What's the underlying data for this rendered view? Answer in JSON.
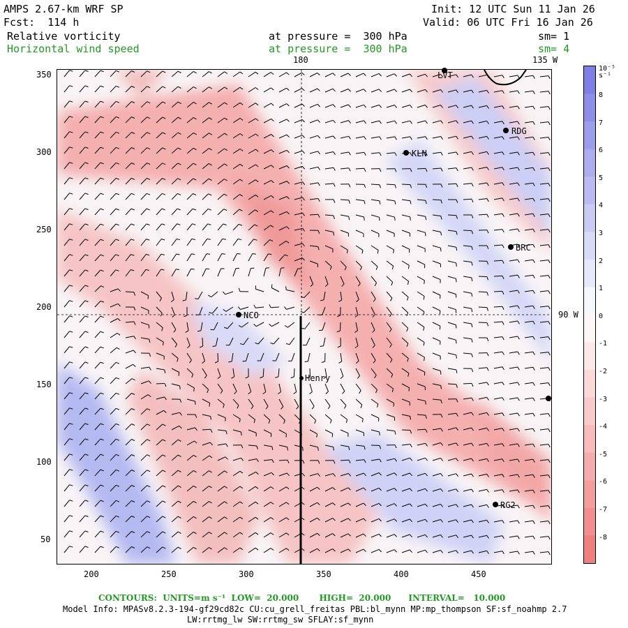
{
  "header": {
    "model": "AMPS 2.67-km WRF SP",
    "fcst": "Fcst:  114 h",
    "init": "Init: 12 UTC Sun 11 Jan 26",
    "valid": "Valid: 06 UTC Fri 16 Jan 26",
    "field1": {
      "name": "Relative vorticity",
      "level": "at pressure =  300 hPa",
      "sm": "sm= 1"
    },
    "field2": {
      "name": "Horizontal wind speed",
      "level": "at pressure =  300 hPa",
      "sm": "sm= 4"
    }
  },
  "map": {
    "x_ticks": [
      "200",
      "250",
      "300",
      "350",
      "400",
      "450"
    ],
    "y_ticks": [
      "50",
      "100",
      "150",
      "200",
      "250",
      "300",
      "350"
    ],
    "meridian_labels": [
      "180",
      "135 W",
      "90 W"
    ],
    "stations": [
      "LVT",
      "RDG",
      "KLN",
      "BRC",
      "NCO",
      "Henry",
      "RG2"
    ]
  },
  "colorbar": {
    "unit": "10⁻⁵ s⁻¹",
    "labels": [
      "8",
      "7",
      "6",
      "5",
      "4",
      "3",
      "2",
      "1",
      "0",
      "-1",
      "-2",
      "-3",
      "-4",
      "-5",
      "-6",
      "-7",
      "-8"
    ],
    "positive_color": "#7f7fe6",
    "negative_color": "#f07f7f"
  },
  "footer": {
    "contours": "CONTOURS:  UNITS=m s⁻¹  LOW=  20.000       HIGH=  20.000      INTERVAL=   10.000",
    "model_info": "Model Info: MPASv8.2.3-194-gf29cd82c CU:cu_grell_freitas PBL:bl_mynn MP:mp_thompson SF:sf_noahmp 2.7",
    "model_info2": "LW:rrtmg_lw SW:rrtmg_sw SFLAY:sf_mynn"
  }
}
